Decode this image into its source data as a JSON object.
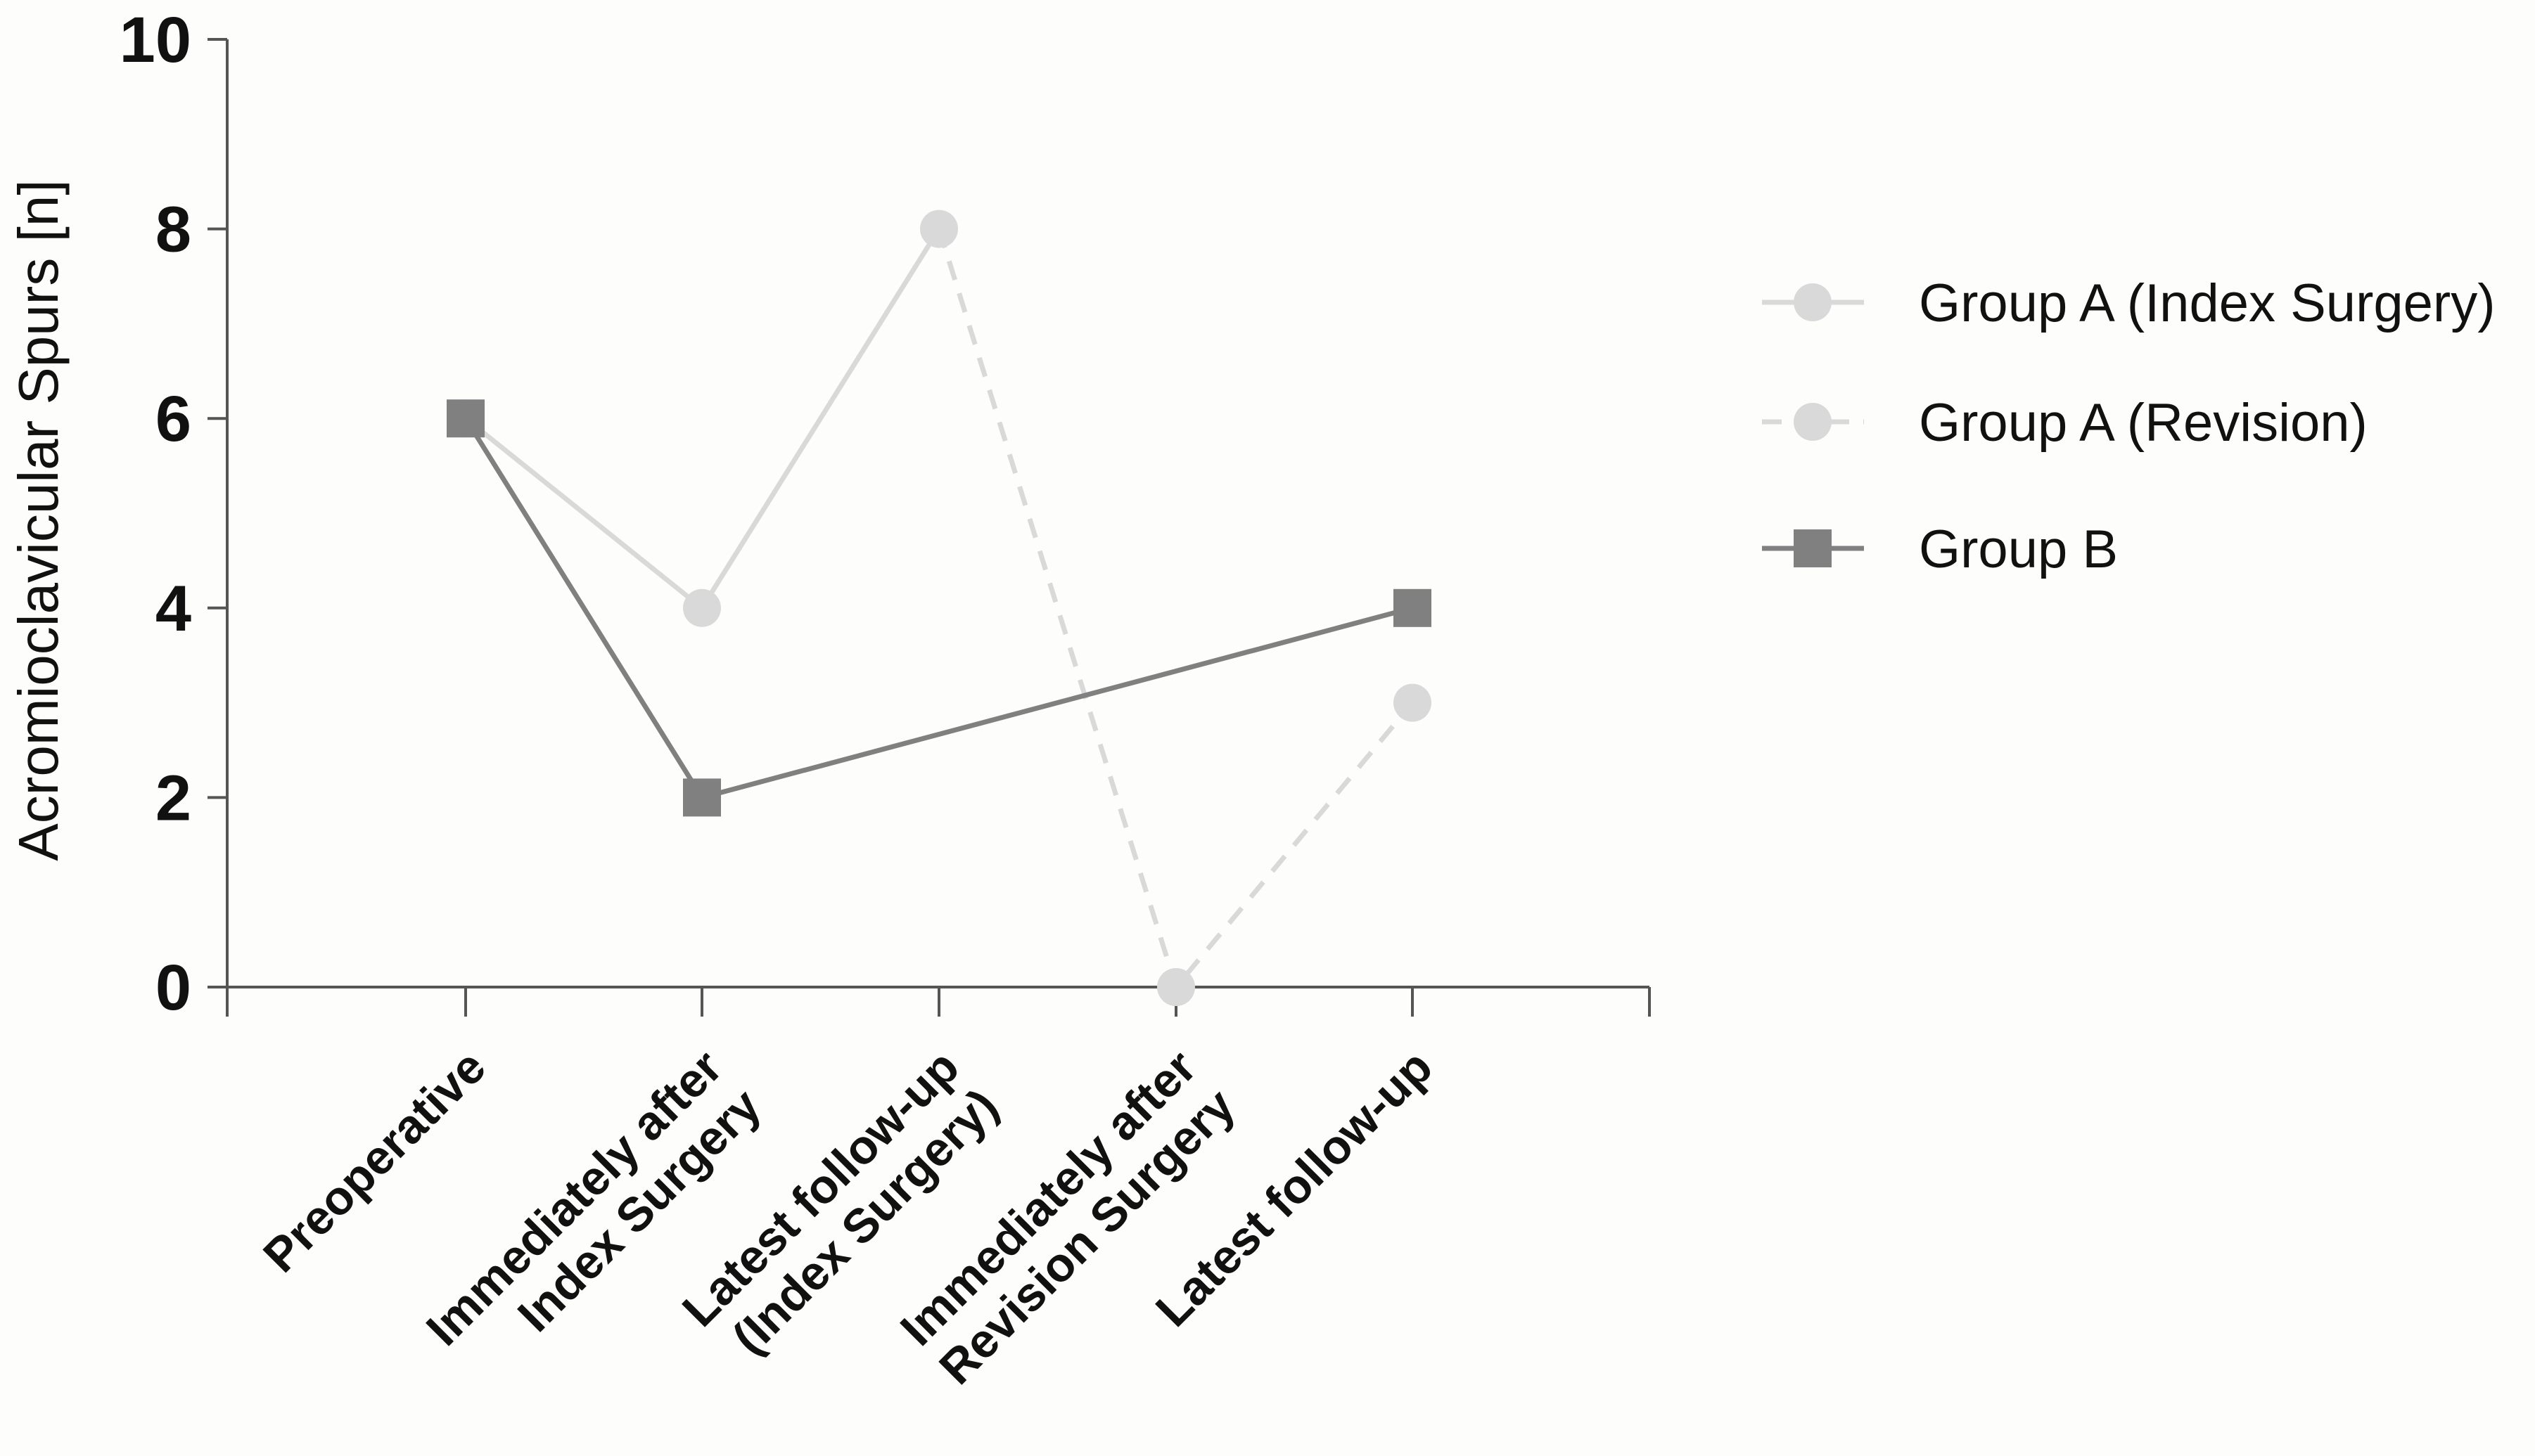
{
  "chart_data": {
    "type": "line",
    "title": "",
    "xlabel": "",
    "ylabel": "Acromioclavicular Spurs [n]",
    "ylim": [
      0,
      10
    ],
    "yticks": [
      0,
      2,
      4,
      6,
      8,
      10
    ],
    "grid": false,
    "legend_position": "right",
    "categories": [
      [
        "Preoperative"
      ],
      [
        "Immediately after",
        "Index Surgery"
      ],
      [
        "Latest follow-up",
        "(Index Surgery)"
      ],
      [
        "Immediately after",
        "Revision Surgery"
      ],
      [
        "Latest follow-up"
      ]
    ],
    "series": [
      {
        "name": "Group A (Index Surgery)",
        "values": [
          6,
          4,
          8,
          null,
          null
        ],
        "color": "#d9d9d9",
        "marker": "circle",
        "line": "solid"
      },
      {
        "name": "Group A (Revision)",
        "values": [
          null,
          null,
          8,
          0,
          3
        ],
        "color": "#d9d9d9",
        "marker": "circle",
        "line": "dashed",
        "marker_indices": [
          3,
          4
        ]
      },
      {
        "name": "Group B",
        "values": [
          6,
          2,
          null,
          null,
          4
        ],
        "color": "#808080",
        "marker": "square",
        "line": "solid"
      }
    ]
  }
}
